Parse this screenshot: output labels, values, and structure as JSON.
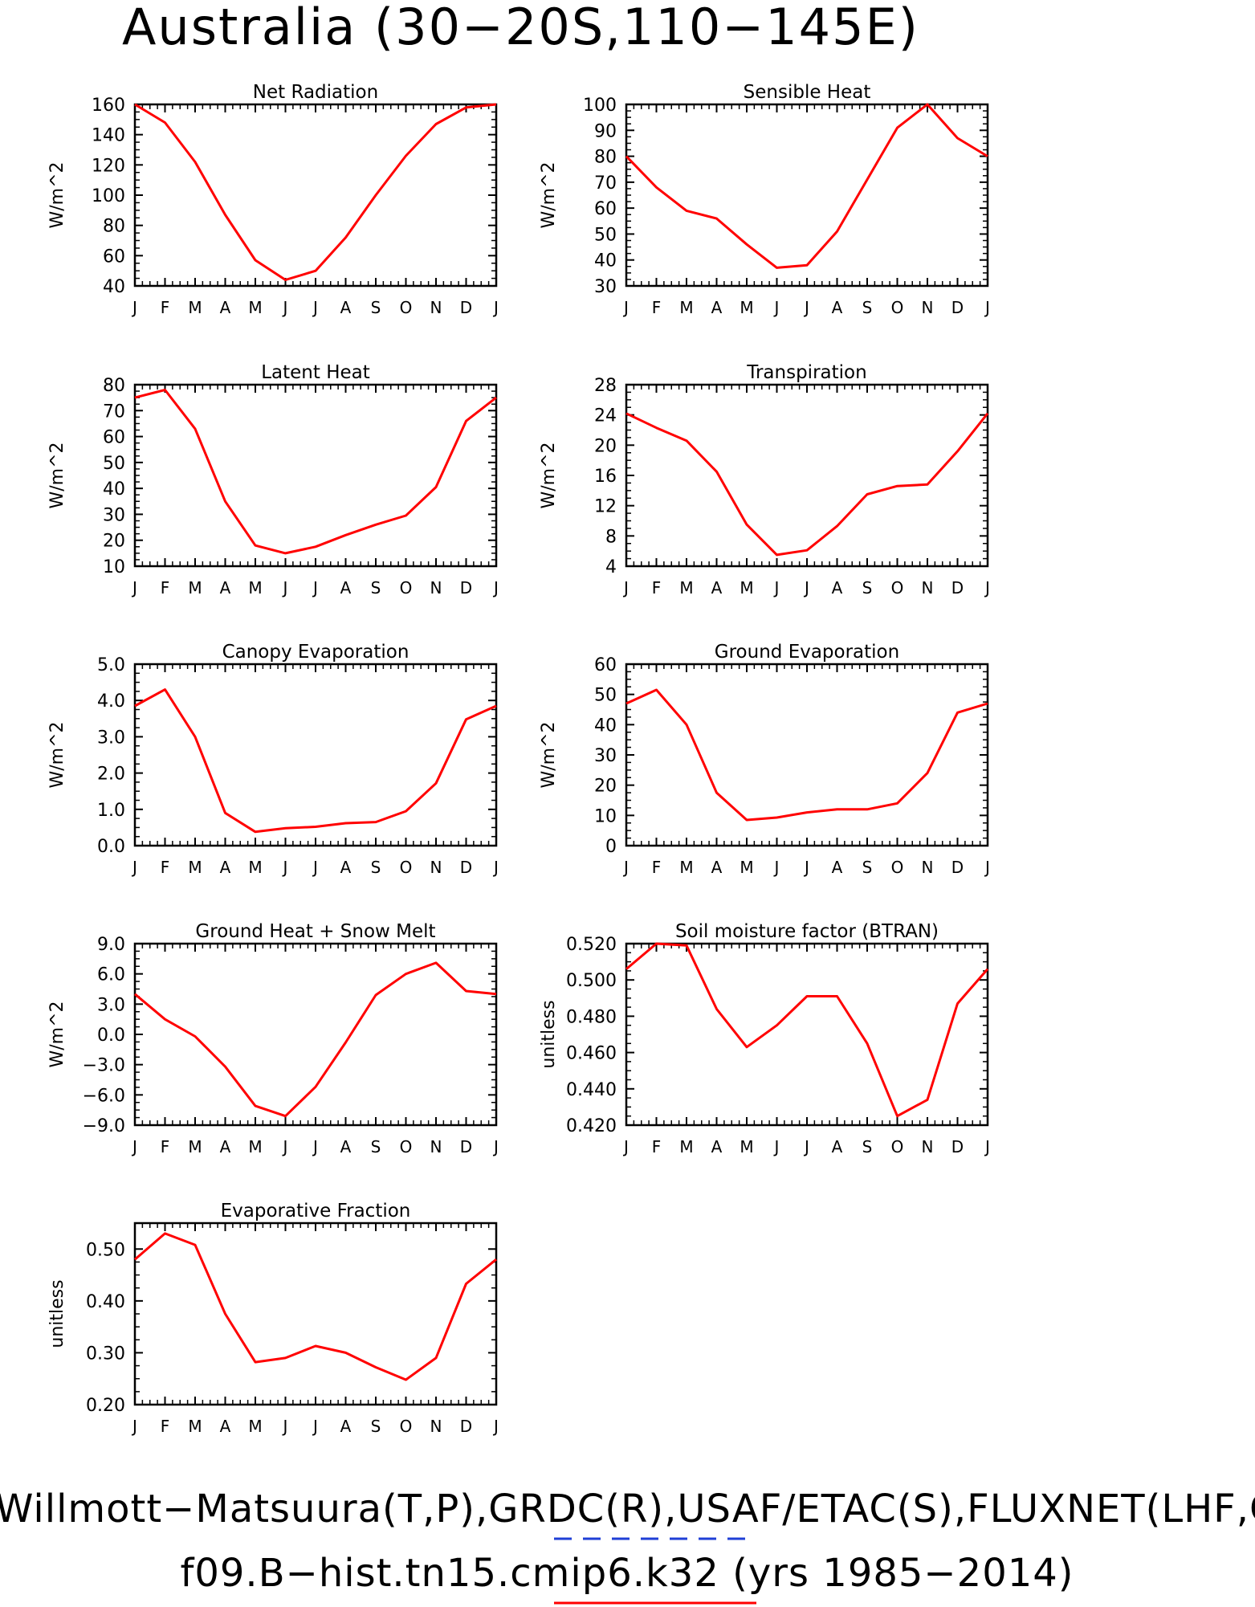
{
  "figure": {
    "title": "Australia (30−20S,110−145E)",
    "footer": {
      "line1": "Willmott−Matsuura(T,P),GRDC(R),USAF/ETAC(S),FLUXNET(LHF,GPP)",
      "line2": "f09.B−hist.tn15.cmip6.k32 (yrs 1985−2014)"
    },
    "colors": {
      "series": "#ff0000",
      "obs_dash": "#1f3fd6",
      "axes": "#000000"
    }
  },
  "chart_data": [
    {
      "type": "line",
      "title": "Net Radiation",
      "ylabel": "W/m^2",
      "x": [
        "J",
        "F",
        "M",
        "A",
        "M",
        "J",
        "J",
        "A",
        "S",
        "O",
        "N",
        "D",
        "J"
      ],
      "ylim": [
        40,
        160
      ],
      "yticks": [
        "40",
        "60",
        "80",
        "100",
        "120",
        "140",
        "160"
      ],
      "values": [
        160,
        148,
        122,
        87,
        57,
        44,
        50,
        72,
        100,
        126,
        147,
        158,
        160
      ]
    },
    {
      "type": "line",
      "title": "Sensible Heat",
      "ylabel": "W/m^2",
      "x": [
        "J",
        "F",
        "M",
        "A",
        "M",
        "J",
        "J",
        "A",
        "S",
        "O",
        "N",
        "D",
        "J"
      ],
      "ylim": [
        30,
        100
      ],
      "yticks": [
        "30",
        "40",
        "50",
        "60",
        "70",
        "80",
        "90",
        "100"
      ],
      "values": [
        80,
        68,
        59,
        56,
        46,
        37,
        38,
        51,
        71,
        91,
        100,
        87,
        80
      ]
    },
    {
      "type": "line",
      "title": "Latent Heat",
      "ylabel": "W/m^2",
      "x": [
        "J",
        "F",
        "M",
        "A",
        "M",
        "J",
        "J",
        "A",
        "S",
        "O",
        "N",
        "D",
        "J"
      ],
      "ylim": [
        10,
        80
      ],
      "yticks": [
        "10",
        "20",
        "30",
        "40",
        "50",
        "60",
        "70",
        "80"
      ],
      "values": [
        75,
        78,
        63,
        35,
        18,
        15,
        17.5,
        22,
        26,
        29.5,
        40.5,
        66,
        75
      ]
    },
    {
      "type": "line",
      "title": "Transpiration",
      "ylabel": "W/m^2",
      "x": [
        "J",
        "F",
        "M",
        "A",
        "M",
        "J",
        "J",
        "A",
        "S",
        "O",
        "N",
        "D",
        "J"
      ],
      "ylim": [
        4,
        28
      ],
      "yticks": [
        "4",
        "8",
        "12",
        "16",
        "20",
        "24",
        "28"
      ],
      "values": [
        24.2,
        22.3,
        20.6,
        16.5,
        9.5,
        5.5,
        6.1,
        9.3,
        13.5,
        14.6,
        14.8,
        19.2,
        24.2
      ]
    },
    {
      "type": "line",
      "title": "Canopy Evaporation",
      "ylabel": "W/m^2",
      "x": [
        "J",
        "F",
        "M",
        "A",
        "M",
        "J",
        "J",
        "A",
        "S",
        "O",
        "N",
        "D",
        "J"
      ],
      "ylim": [
        0,
        5
      ],
      "yticks": [
        "0.0",
        "1.0",
        "2.0",
        "3.0",
        "4.0",
        "5.0"
      ],
      "values": [
        3.85,
        4.3,
        3.0,
        0.9,
        0.38,
        0.48,
        0.52,
        0.62,
        0.65,
        0.95,
        1.72,
        3.48,
        3.85
      ]
    },
    {
      "type": "line",
      "title": "Ground Evaporation",
      "ylabel": "W/m^2",
      "x": [
        "J",
        "F",
        "M",
        "A",
        "M",
        "J",
        "J",
        "A",
        "S",
        "O",
        "N",
        "D",
        "J"
      ],
      "ylim": [
        0,
        60
      ],
      "yticks": [
        "0",
        "10",
        "20",
        "30",
        "40",
        "50",
        "60"
      ],
      "values": [
        47,
        51.5,
        40,
        17.5,
        8.5,
        9.3,
        11,
        12,
        12,
        14,
        24,
        44,
        47
      ]
    },
    {
      "type": "line",
      "title": "Ground Heat + Snow Melt",
      "ylabel": "W/m^2",
      "x": [
        "J",
        "F",
        "M",
        "A",
        "M",
        "J",
        "J",
        "A",
        "S",
        "O",
        "N",
        "D",
        "J"
      ],
      "ylim": [
        -9,
        9
      ],
      "yticks": [
        "−9.0",
        "−6.0",
        "−3.0",
        "0.0",
        "3.0",
        "6.0",
        "9.0"
      ],
      "values": [
        4.0,
        1.5,
        -0.2,
        -3.2,
        -7.1,
        -8.1,
        -5.2,
        -0.8,
        3.9,
        6.0,
        7.1,
        4.3,
        4.0
      ]
    },
    {
      "type": "line",
      "title": "Soil moisture factor (BTRAN)",
      "ylabel": "unitless",
      "x": [
        "J",
        "F",
        "M",
        "A",
        "M",
        "J",
        "J",
        "A",
        "S",
        "O",
        "N",
        "D",
        "J"
      ],
      "ylim": [
        0.42,
        0.52
      ],
      "yticks": [
        "0.420",
        "0.440",
        "0.460",
        "0.480",
        "0.500",
        "0.520"
      ],
      "values": [
        0.506,
        0.52,
        0.519,
        0.484,
        0.463,
        0.475,
        0.491,
        0.491,
        0.465,
        0.425,
        0.434,
        0.487,
        0.506
      ]
    },
    {
      "type": "line",
      "title": "Evaporative Fraction",
      "ylabel": "unitless",
      "x": [
        "J",
        "F",
        "M",
        "A",
        "M",
        "J",
        "J",
        "A",
        "S",
        "O",
        "N",
        "D",
        "J"
      ],
      "ylim": [
        0.2,
        0.55
      ],
      "yticks": [
        "0.20",
        "0.30",
        "0.40",
        "0.50"
      ],
      "values": [
        0.48,
        0.53,
        0.508,
        0.375,
        0.282,
        0.29,
        0.313,
        0.3,
        0.272,
        0.248,
        0.29,
        0.433,
        0.48
      ]
    }
  ]
}
